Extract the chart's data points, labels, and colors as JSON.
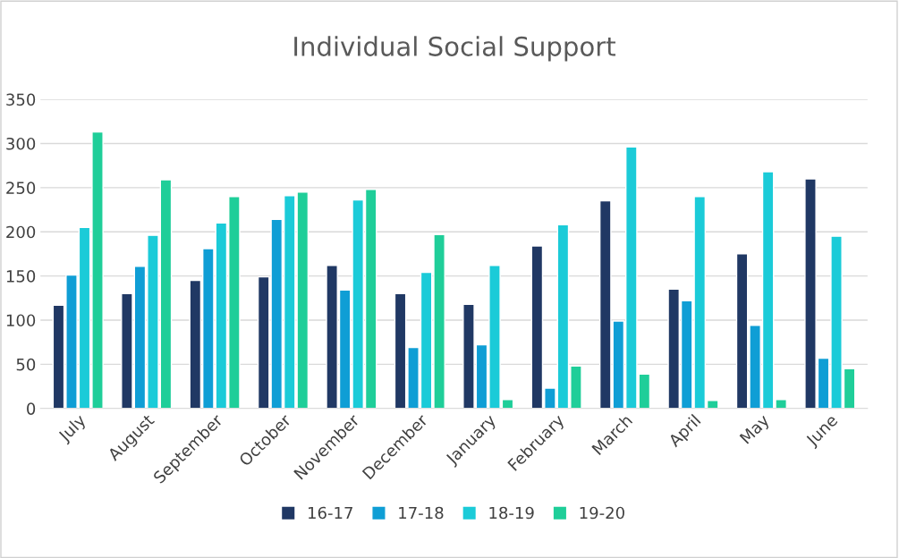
{
  "chart_data": {
    "type": "bar",
    "title": "Individual Social Support",
    "categories": [
      "July",
      "August",
      "September",
      "October",
      "November",
      "December",
      "January",
      "February",
      "March",
      "April",
      "May",
      "June"
    ],
    "series": [
      {
        "name": "16-17",
        "color": "#203864",
        "values": [
          117,
          130,
          145,
          149,
          162,
          130,
          118,
          184,
          235,
          135,
          175,
          260
        ]
      },
      {
        "name": "17-18",
        "color": "#0f9ed5",
        "values": [
          151,
          161,
          181,
          214,
          134,
          69,
          72,
          23,
          99,
          122,
          94,
          57
        ]
      },
      {
        "name": "18-19",
        "color": "#1bcbd8",
        "values": [
          205,
          196,
          210,
          241,
          236,
          154,
          162,
          208,
          296,
          240,
          268,
          195
        ]
      },
      {
        "name": "19-20",
        "color": "#1fce99",
        "values": [
          313,
          259,
          240,
          245,
          248,
          197,
          10,
          48,
          39,
          9,
          10,
          45
        ]
      }
    ],
    "ylim": [
      0,
      350
    ],
    "yticks": [
      0,
      50,
      100,
      150,
      200,
      250,
      300,
      350
    ],
    "grid": "y",
    "legend": "bottom"
  }
}
